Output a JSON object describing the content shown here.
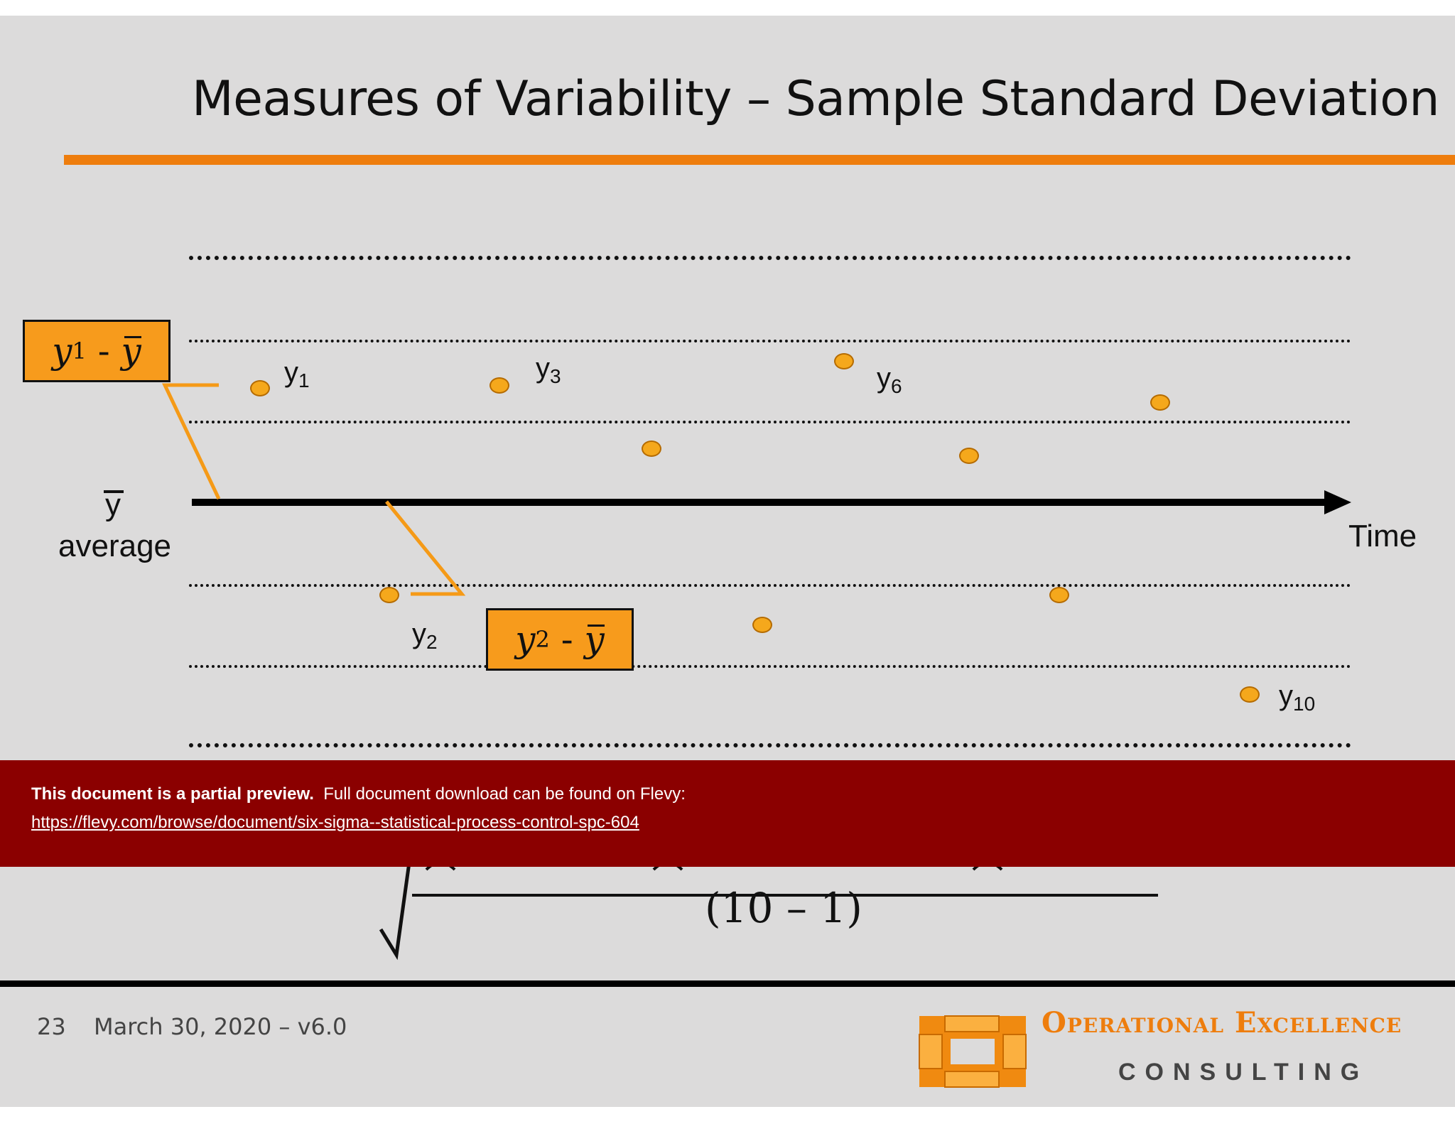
{
  "slide": {
    "title": "Measures of Variability – Sample Standard Deviation"
  },
  "chart": {
    "axis_label": "Time",
    "mean_symbol": "y",
    "mean_label": "average",
    "point_labels": {
      "y1": {
        "base": "y",
        "sub": "1"
      },
      "y2": {
        "base": "y",
        "sub": "2"
      },
      "y3": {
        "base": "y",
        "sub": "3"
      },
      "y6": {
        "base": "y",
        "sub": "6"
      },
      "y10": {
        "base": "y",
        "sub": "10"
      }
    },
    "callouts": {
      "c1": {
        "base": "y",
        "sub": "1",
        "op": "-",
        "mean": "y"
      },
      "c2": {
        "base": "y",
        "sub": "2",
        "op": "-",
        "mean": "y"
      }
    },
    "colors": {
      "accent": "#ee7d0d",
      "point": "#f5a81c",
      "callout_fill": "#f79b1c",
      "banner": "#8b0000"
    }
  },
  "banner": {
    "bold_text": "This document is a partial preview.",
    "text": "Full document download can be found on Flevy:",
    "link": "https://flevy.com/browse/document/six-sigma--statistical-process-control-spc-604"
  },
  "formula": {
    "denominator": "(10 – 1)"
  },
  "footer": {
    "page_number": "23",
    "date_version": "March 30, 2020 – v6.0",
    "logo_line1": "Operational Excellence",
    "logo_line2": "CONSULTING"
  }
}
